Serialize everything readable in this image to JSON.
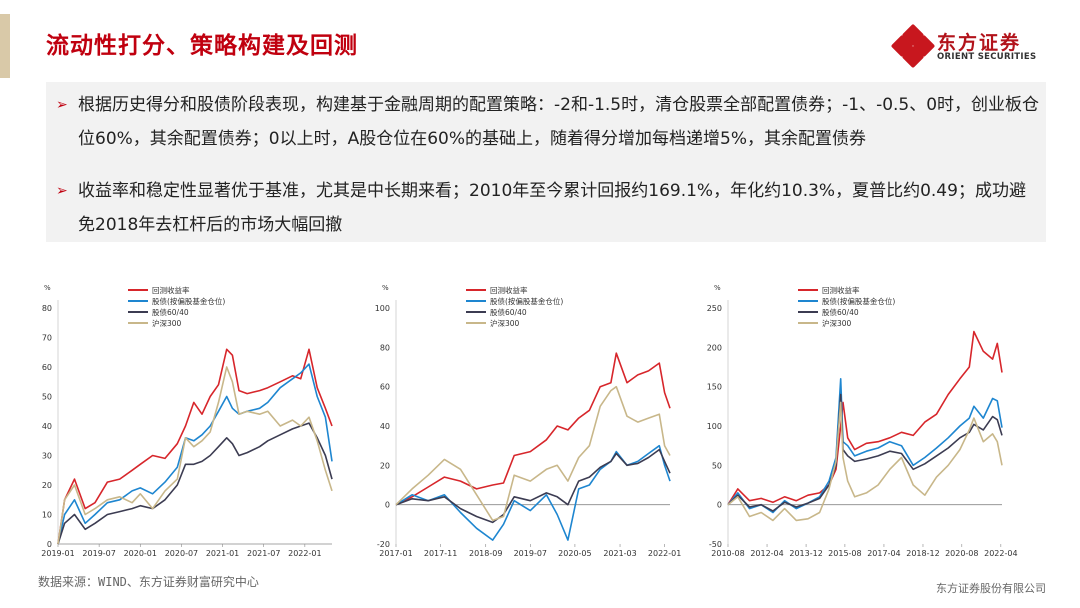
{
  "header": {
    "title": "流动性打分、策略构建及回测"
  },
  "logo": {
    "cn": "东方证券",
    "en": "ORIENT SECURITIES"
  },
  "bullets": [
    "根据历史得分和股债阶段表现，构建基于金融周期的配置策略：-2和-1.5时，清仓股票全部配置债券；-1、-0.5、0时，创业板仓位60%，其余配置债券；0以上时，A股仓位在60%的基础上，随着得分增加每档递增5%，其余配置债券",
    "收益率和稳定性显著优于基准，尤其是中长期来看；2010年至今累计回报约169.1%，年化约10.3%，夏普比约0.49；成功避免2018年去杠杆后的市场大幅回撤"
  ],
  "bullet_arrow": "➢",
  "footer": {
    "source": "数据来源：WIND、东方证券财富研究中心",
    "company": "东方证券股份有限公司"
  },
  "colors": {
    "title": "#c0000f",
    "red": "#d7262b",
    "blue": "#1e86d0",
    "dark": "#3c3c52",
    "tan": "#c8b78a"
  },
  "chart_data": [
    {
      "type": "line",
      "unit": "%",
      "ylim": [
        0,
        80
      ],
      "yticks": [
        0,
        10,
        20,
        30,
        40,
        50,
        60,
        70,
        80
      ],
      "xlim": [
        2019.0,
        2022.33
      ],
      "xticks": [
        {
          "x": 2019.0,
          "label": "2019-01"
        },
        {
          "x": 2019.5,
          "label": "2019-07"
        },
        {
          "x": 2020.0,
          "label": "2020-01"
        },
        {
          "x": 2020.5,
          "label": "2020-07"
        },
        {
          "x": 2021.0,
          "label": "2021-01"
        },
        {
          "x": 2021.5,
          "label": "2021-07"
        },
        {
          "x": 2022.0,
          "label": "2022-01"
        }
      ],
      "series": [
        {
          "name": "回测收益率",
          "color": "#d7262b",
          "x": [
            2019.0,
            2019.08,
            2019.2,
            2019.33,
            2019.45,
            2019.6,
            2019.75,
            2019.9,
            2020.0,
            2020.15,
            2020.3,
            2020.45,
            2020.55,
            2020.65,
            2020.75,
            2020.85,
            2020.95,
            2021.05,
            2021.12,
            2021.2,
            2021.3,
            2021.45,
            2021.55,
            2021.7,
            2021.85,
            2021.95,
            2022.05,
            2022.15,
            2022.25,
            2022.33
          ],
          "y": [
            0,
            15,
            22,
            12,
            14,
            21,
            22,
            25,
            27,
            30,
            29,
            34,
            40,
            48,
            44,
            50,
            54,
            66,
            64,
            52,
            51,
            52,
            53,
            55,
            57,
            56,
            66,
            53,
            46,
            40
          ]
        },
        {
          "name": "股债(按偏股基金仓位)",
          "color": "#1e86d0",
          "x": [
            2019.0,
            2019.08,
            2019.2,
            2019.33,
            2019.45,
            2019.6,
            2019.75,
            2019.9,
            2020.0,
            2020.15,
            2020.3,
            2020.45,
            2020.55,
            2020.65,
            2020.75,
            2020.85,
            2020.95,
            2021.05,
            2021.12,
            2021.2,
            2021.3,
            2021.45,
            2021.55,
            2021.7,
            2021.85,
            2021.95,
            2022.05,
            2022.15,
            2022.25,
            2022.33
          ],
          "y": [
            0,
            10,
            15,
            7,
            10,
            14,
            15,
            18,
            19,
            17,
            21,
            26,
            36,
            35,
            37,
            40,
            45,
            50,
            46,
            44,
            45,
            46,
            48,
            53,
            56,
            58,
            61,
            50,
            43,
            28
          ]
        },
        {
          "name": "股债60/40",
          "color": "#3c3c52",
          "x": [
            2019.0,
            2019.08,
            2019.2,
            2019.33,
            2019.45,
            2019.6,
            2019.75,
            2019.9,
            2020.0,
            2020.15,
            2020.3,
            2020.45,
            2020.55,
            2020.65,
            2020.75,
            2020.85,
            2020.95,
            2021.05,
            2021.12,
            2021.2,
            2021.3,
            2021.45,
            2021.55,
            2021.7,
            2021.85,
            2021.95,
            2022.05,
            2022.15,
            2022.25,
            2022.33
          ],
          "y": [
            0,
            7,
            10,
            5,
            7,
            10,
            11,
            12,
            13,
            12,
            15,
            20,
            27,
            27,
            28,
            30,
            33,
            36,
            34,
            30,
            31,
            33,
            35,
            37,
            39,
            40,
            41,
            36,
            30,
            22
          ]
        },
        {
          "name": "沪深300",
          "color": "#c8b78a",
          "x": [
            2019.0,
            2019.08,
            2019.2,
            2019.33,
            2019.45,
            2019.6,
            2019.75,
            2019.9,
            2020.0,
            2020.15,
            2020.3,
            2020.45,
            2020.55,
            2020.65,
            2020.75,
            2020.85,
            2020.95,
            2021.05,
            2021.12,
            2021.2,
            2021.3,
            2021.45,
            2021.55,
            2021.7,
            2021.85,
            2021.95,
            2022.05,
            2022.15,
            2022.25,
            2022.33
          ],
          "y": [
            0,
            15,
            20,
            10,
            12,
            15,
            16,
            14,
            17,
            12,
            18,
            22,
            36,
            33,
            35,
            38,
            48,
            60,
            55,
            44,
            45,
            44,
            45,
            40,
            42,
            40,
            43,
            35,
            25,
            18
          ]
        }
      ]
    },
    {
      "type": "line",
      "unit": "%",
      "ylim": [
        -20,
        100
      ],
      "yticks": [
        -20,
        0,
        20,
        40,
        60,
        80,
        100
      ],
      "xlim": [
        2017.0,
        2022.1
      ],
      "xticks": [
        {
          "x": 2017.0,
          "label": "2017-01"
        },
        {
          "x": 2017.83,
          "label": "2017-11"
        },
        {
          "x": 2018.67,
          "label": "2018-09"
        },
        {
          "x": 2019.5,
          "label": "2019-07"
        },
        {
          "x": 2020.33,
          "label": "2020-05"
        },
        {
          "x": 2021.17,
          "label": "2021-03"
        },
        {
          "x": 2022.0,
          "label": "2022-01"
        }
      ],
      "series": [
        {
          "name": "回测收益率",
          "color": "#d7262b",
          "x": [
            2017.0,
            2017.3,
            2017.6,
            2017.9,
            2018.2,
            2018.5,
            2018.8,
            2019.0,
            2019.2,
            2019.5,
            2019.8,
            2020.0,
            2020.2,
            2020.4,
            2020.6,
            2020.8,
            2021.0,
            2021.1,
            2021.3,
            2021.5,
            2021.7,
            2021.9,
            2022.0,
            2022.1
          ],
          "y": [
            0,
            4,
            9,
            14,
            12,
            8,
            10,
            11,
            25,
            27,
            33,
            40,
            38,
            44,
            48,
            60,
            62,
            77,
            62,
            66,
            68,
            72,
            57,
            49
          ]
        },
        {
          "name": "股债(按偏股基金仓位)",
          "color": "#1e86d0",
          "x": [
            2017.0,
            2017.3,
            2017.6,
            2017.9,
            2018.2,
            2018.5,
            2018.8,
            2019.0,
            2019.2,
            2019.5,
            2019.8,
            2020.0,
            2020.2,
            2020.4,
            2020.6,
            2020.8,
            2021.0,
            2021.1,
            2021.3,
            2021.5,
            2021.7,
            2021.9,
            2022.0,
            2022.1
          ],
          "y": [
            0,
            5,
            2,
            5,
            -4,
            -12,
            -18,
            -10,
            2,
            -3,
            5,
            -5,
            -18,
            8,
            10,
            18,
            22,
            27,
            20,
            22,
            26,
            30,
            20,
            12
          ]
        },
        {
          "name": "股债60/40",
          "color": "#3c3c52",
          "x": [
            2017.0,
            2017.3,
            2017.6,
            2017.9,
            2018.2,
            2018.5,
            2018.8,
            2019.0,
            2019.2,
            2019.5,
            2019.8,
            2020.0,
            2020.2,
            2020.4,
            2020.6,
            2020.8,
            2021.0,
            2021.1,
            2021.3,
            2021.5,
            2021.7,
            2021.9,
            2022.0,
            2022.1
          ],
          "y": [
            0,
            3,
            2,
            4,
            -2,
            -6,
            -9,
            -5,
            4,
            2,
            6,
            4,
            0,
            12,
            14,
            19,
            22,
            26,
            20,
            21,
            24,
            28,
            22,
            16
          ]
        },
        {
          "name": "沪深300",
          "color": "#c8b78a",
          "x": [
            2017.0,
            2017.3,
            2017.6,
            2017.9,
            2018.2,
            2018.5,
            2018.8,
            2019.0,
            2019.2,
            2019.5,
            2019.8,
            2020.0,
            2020.2,
            2020.4,
            2020.6,
            2020.8,
            2021.0,
            2021.1,
            2021.3,
            2021.5,
            2021.7,
            2021.9,
            2022.0,
            2022.1
          ],
          "y": [
            0,
            8,
            15,
            23,
            18,
            5,
            -8,
            -6,
            15,
            12,
            18,
            20,
            12,
            24,
            30,
            50,
            58,
            60,
            45,
            42,
            44,
            46,
            30,
            25
          ]
        }
      ]
    },
    {
      "type": "line",
      "unit": "%",
      "ylim": [
        -50,
        250
      ],
      "yticks": [
        -50,
        0,
        50,
        100,
        150,
        200,
        250
      ],
      "xlim": [
        2010.58,
        2022.3
      ],
      "xticks": [
        {
          "x": 2010.58,
          "label": "2010-08"
        },
        {
          "x": 2012.25,
          "label": "2012-04"
        },
        {
          "x": 2013.92,
          "label": "2013-12"
        },
        {
          "x": 2015.58,
          "label": "2015-08"
        },
        {
          "x": 2017.25,
          "label": "2017-04"
        },
        {
          "x": 2018.92,
          "label": "2018-12"
        },
        {
          "x": 2020.58,
          "label": "2020-08"
        },
        {
          "x": 2022.25,
          "label": "2022-04"
        }
      ],
      "series": [
        {
          "name": "回测收益率",
          "color": "#d7262b",
          "x": [
            2010.58,
            2011.0,
            2011.5,
            2012.0,
            2012.5,
            2013.0,
            2013.5,
            2014.0,
            2014.5,
            2014.9,
            2015.2,
            2015.4,
            2015.5,
            2015.7,
            2016.0,
            2016.5,
            2017.0,
            2017.5,
            2018.0,
            2018.5,
            2019.0,
            2019.5,
            2020.0,
            2020.5,
            2020.9,
            2021.1,
            2021.5,
            2021.9,
            2022.1,
            2022.3
          ],
          "y": [
            0,
            20,
            5,
            8,
            3,
            10,
            5,
            12,
            15,
            25,
            45,
            100,
            130,
            85,
            70,
            78,
            80,
            85,
            92,
            88,
            105,
            115,
            140,
            160,
            175,
            220,
            195,
            185,
            205,
            168
          ]
        },
        {
          "name": "股债(按偏股基金仓位)",
          "color": "#1e86d0",
          "x": [
            2010.58,
            2011.0,
            2011.5,
            2012.0,
            2012.5,
            2013.0,
            2013.5,
            2014.0,
            2014.5,
            2014.9,
            2015.2,
            2015.4,
            2015.5,
            2015.7,
            2016.0,
            2016.5,
            2017.0,
            2017.5,
            2018.0,
            2018.5,
            2019.0,
            2019.5,
            2020.0,
            2020.5,
            2020.9,
            2021.1,
            2021.5,
            2021.9,
            2022.1,
            2022.3
          ],
          "y": [
            0,
            15,
            -5,
            0,
            -10,
            5,
            -5,
            2,
            10,
            30,
            60,
            160,
            80,
            75,
            62,
            68,
            72,
            80,
            75,
            50,
            60,
            72,
            85,
            100,
            110,
            125,
            110,
            135,
            132,
            98
          ]
        },
        {
          "name": "股债60/40",
          "color": "#3c3c52",
          "x": [
            2010.58,
            2011.0,
            2011.5,
            2012.0,
            2012.5,
            2013.0,
            2013.5,
            2014.0,
            2014.5,
            2014.9,
            2015.2,
            2015.4,
            2015.5,
            2015.7,
            2016.0,
            2016.5,
            2017.0,
            2017.5,
            2018.0,
            2018.5,
            2019.0,
            2019.5,
            2020.0,
            2020.5,
            2020.9,
            2021.1,
            2021.5,
            2021.9,
            2022.1,
            2022.3
          ],
          "y": [
            0,
            12,
            -3,
            0,
            -8,
            3,
            -3,
            2,
            8,
            25,
            50,
            140,
            70,
            62,
            55,
            58,
            62,
            68,
            65,
            45,
            52,
            62,
            72,
            85,
            92,
            102,
            95,
            112,
            108,
            88
          ]
        },
        {
          "name": "沪深300",
          "color": "#c8b78a",
          "x": [
            2010.58,
            2011.0,
            2011.5,
            2012.0,
            2012.5,
            2013.0,
            2013.5,
            2014.0,
            2014.5,
            2014.9,
            2015.2,
            2015.4,
            2015.5,
            2015.7,
            2016.0,
            2016.5,
            2017.0,
            2017.5,
            2018.0,
            2018.5,
            2019.0,
            2019.5,
            2020.0,
            2020.5,
            2020.9,
            2021.1,
            2021.5,
            2021.9,
            2022.1,
            2022.3
          ],
          "y": [
            0,
            10,
            -15,
            -10,
            -20,
            -5,
            -20,
            -18,
            -10,
            20,
            55,
            130,
            60,
            30,
            10,
            15,
            25,
            45,
            60,
            25,
            12,
            35,
            50,
            70,
            95,
            110,
            80,
            90,
            80,
            50
          ]
        }
      ]
    }
  ]
}
